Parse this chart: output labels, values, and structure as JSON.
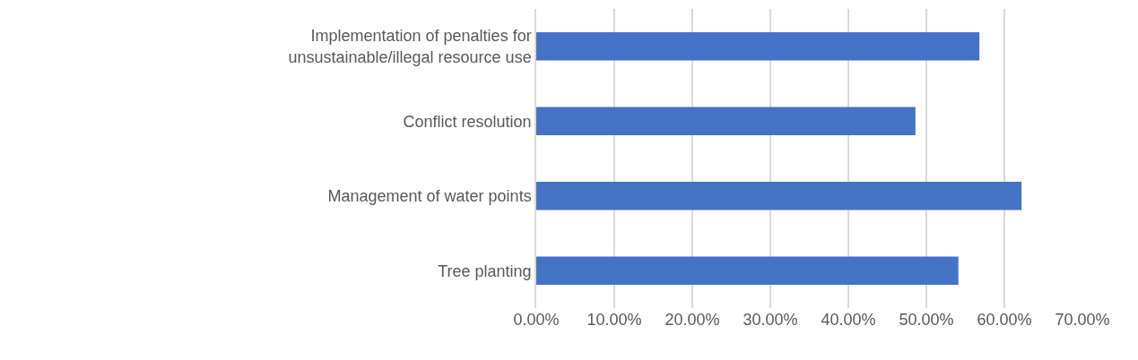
{
  "chart_data": {
    "type": "bar",
    "orientation": "horizontal",
    "categories": [
      "Implementation of penalties for unsustainable/illegal resource use",
      "Conflict resolution",
      "Management of water points",
      "Tree planting"
    ],
    "values": [
      56.8,
      48.6,
      62.2,
      54.1
    ],
    "color": "#4472c4",
    "xlim": [
      0,
      70
    ],
    "xticks": [
      {
        "value": 0,
        "label": "0.00%"
      },
      {
        "value": 10,
        "label": "10.00%"
      },
      {
        "value": 20,
        "label": "20.00%"
      },
      {
        "value": 30,
        "label": "30.00%"
      },
      {
        "value": 40,
        "label": "40.00%"
      },
      {
        "value": 50,
        "label": "50.00%"
      },
      {
        "value": 60,
        "label": "60.00%"
      },
      {
        "value": 70,
        "label": "70.00%"
      }
    ],
    "grid": "x"
  }
}
